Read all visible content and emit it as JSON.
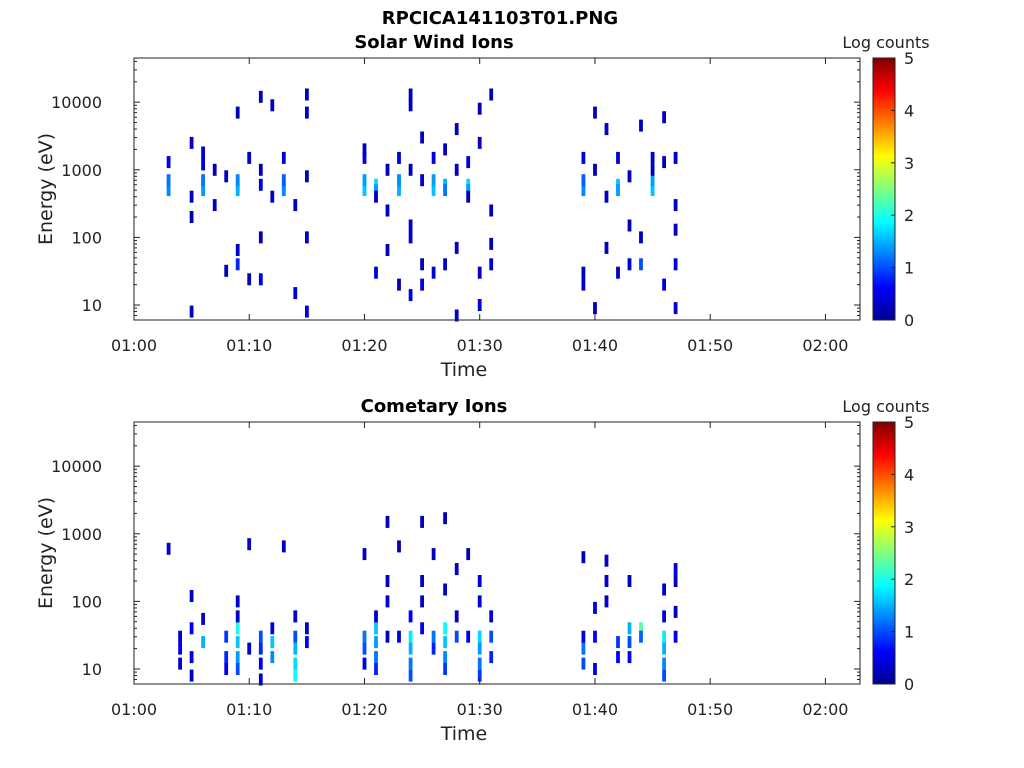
{
  "figure": {
    "title": "RPCICA141103T01.PNG"
  },
  "colorbar": {
    "label": "Log counts",
    "min": 0,
    "max": 5,
    "ticks": [
      "0",
      "1",
      "2",
      "3",
      "4",
      "5"
    ],
    "colormap": "jet"
  },
  "chart_data": [
    {
      "type": "heatmap",
      "title": "Solar Wind Ions",
      "xlabel": "Time",
      "ylabel": "Energy (eV)",
      "y_scale": "log",
      "x_range": [
        "01:00",
        "02:03"
      ],
      "y_range": [
        6,
        45000
      ],
      "x_ticks": [
        "01:00",
        "01:10",
        "01:20",
        "01:30",
        "01:40",
        "01:50",
        "02:00"
      ],
      "y_ticks": [
        "10",
        "100",
        "1000",
        "10000"
      ],
      "cells": [
        [
          "01:03",
          600,
          1.5
        ],
        [
          "01:03",
          500,
          1.3
        ],
        [
          "01:03",
          700,
          1.2
        ],
        [
          "01:03",
          1300,
          0.5
        ],
        [
          "01:05",
          8,
          0.3
        ],
        [
          "01:05",
          2500,
          0.3
        ],
        [
          "01:05",
          400,
          0.3
        ],
        [
          "01:05",
          200,
          0.2
        ],
        [
          "01:06",
          600,
          1.6
        ],
        [
          "01:06",
          500,
          1.4
        ],
        [
          "01:06",
          700,
          1.2
        ],
        [
          "01:06",
          1800,
          0.4
        ],
        [
          "01:06",
          1200,
          0.4
        ],
        [
          "01:07",
          1000,
          0.3
        ],
        [
          "01:07",
          300,
          0.3
        ],
        [
          "01:08",
          32,
          0.3
        ],
        [
          "01:08",
          800,
          0.3
        ],
        [
          "01:09",
          600,
          1.7
        ],
        [
          "01:09",
          500,
          1.5
        ],
        [
          "01:09",
          700,
          1.3
        ],
        [
          "01:09",
          7000,
          0.3
        ],
        [
          "01:09",
          40,
          0.8
        ],
        [
          "01:09",
          65,
          0.4
        ],
        [
          "01:10",
          1500,
          0.4
        ],
        [
          "01:10",
          24,
          0.3
        ],
        [
          "01:11",
          12000,
          0.3
        ],
        [
          "01:11",
          600,
          0.5
        ],
        [
          "01:11",
          100,
          0.3
        ],
        [
          "01:11",
          24,
          0.5
        ],
        [
          "01:11",
          1000,
          0.3
        ],
        [
          "01:12",
          400,
          0.4
        ],
        [
          "01:12",
          9000,
          0.3
        ],
        [
          "01:13",
          600,
          1.6
        ],
        [
          "01:13",
          500,
          1.3
        ],
        [
          "01:13",
          700,
          1.1
        ],
        [
          "01:13",
          1500,
          0.4
        ],
        [
          "01:14",
          15,
          0.4
        ],
        [
          "01:14",
          300,
          0.3
        ],
        [
          "01:15",
          8,
          0.5
        ],
        [
          "01:15",
          13000,
          0.3
        ],
        [
          "01:15",
          100,
          0.3
        ],
        [
          "01:15",
          7000,
          0.3
        ],
        [
          "01:15",
          800,
          0.3
        ],
        [
          "01:20",
          600,
          1.8
        ],
        [
          "01:20",
          500,
          1.6
        ],
        [
          "01:20",
          700,
          1.4
        ],
        [
          "01:20",
          1500,
          0.5
        ],
        [
          "01:20",
          2000,
          0.3
        ],
        [
          "01:21",
          600,
          1.7
        ],
        [
          "01:21",
          500,
          1.4
        ],
        [
          "01:21",
          30,
          0.4
        ],
        [
          "01:21",
          400,
          0.3
        ],
        [
          "01:22",
          250,
          0.3
        ],
        [
          "01:22",
          65,
          0.3
        ],
        [
          "01:22",
          1000,
          0.3
        ],
        [
          "01:23",
          600,
          1.8
        ],
        [
          "01:23",
          500,
          1.5
        ],
        [
          "01:23",
          700,
          1.3
        ],
        [
          "01:23",
          1500,
          0.5
        ],
        [
          "01:23",
          20,
          0.3
        ],
        [
          "01:24",
          14,
          0.5
        ],
        [
          "01:24",
          100,
          0.4
        ],
        [
          "01:24",
          13000,
          0.3
        ],
        [
          "01:24",
          9000,
          0.3
        ],
        [
          "01:24",
          150,
          0.4
        ],
        [
          "01:24",
          1000,
          0.3
        ],
        [
          "01:25",
          20,
          0.5
        ],
        [
          "01:25",
          40,
          0.3
        ],
        [
          "01:25",
          3000,
          0.3
        ],
        [
          "01:25",
          700,
          0.4
        ],
        [
          "01:26",
          600,
          1.9
        ],
        [
          "01:26",
          500,
          1.6
        ],
        [
          "01:26",
          700,
          1.4
        ],
        [
          "01:26",
          1500,
          0.5
        ],
        [
          "01:26",
          30,
          0.4
        ],
        [
          "01:27",
          600,
          1.5
        ],
        [
          "01:27",
          500,
          1.2
        ],
        [
          "01:27",
          40,
          0.4
        ],
        [
          "01:27",
          2000,
          0.3
        ],
        [
          "01:28",
          7,
          0.4
        ],
        [
          "01:28",
          4000,
          0.3
        ],
        [
          "01:28",
          1000,
          0.3
        ],
        [
          "01:28",
          70,
          0.3
        ],
        [
          "01:29",
          600,
          1.7
        ],
        [
          "01:29",
          500,
          1.4
        ],
        [
          "01:29",
          1300,
          0.4
        ],
        [
          "01:29",
          400,
          0.3
        ],
        [
          "01:30",
          10,
          0.5
        ],
        [
          "01:30",
          30,
          0.4
        ],
        [
          "01:30",
          8000,
          0.3
        ],
        [
          "01:30",
          2500,
          0.3
        ],
        [
          "01:31",
          13000,
          0.3
        ],
        [
          "01:31",
          40,
          0.4
        ],
        [
          "01:31",
          80,
          0.3
        ],
        [
          "01:31",
          250,
          0.3
        ],
        [
          "01:39",
          600,
          1.5
        ],
        [
          "01:39",
          500,
          1.3
        ],
        [
          "01:39",
          700,
          1.1
        ],
        [
          "01:39",
          1500,
          0.5
        ],
        [
          "01:39",
          20,
          0.4
        ],
        [
          "01:39",
          30,
          0.3
        ],
        [
          "01:40",
          7000,
          0.3
        ],
        [
          "01:40",
          1000,
          0.3
        ],
        [
          "01:40",
          9,
          0.3
        ],
        [
          "01:41",
          4000,
          0.3
        ],
        [
          "01:41",
          70,
          0.3
        ],
        [
          "01:41",
          400,
          0.3
        ],
        [
          "01:42",
          600,
          1.6
        ],
        [
          "01:42",
          500,
          1.4
        ],
        [
          "01:42",
          1500,
          0.4
        ],
        [
          "01:42",
          30,
          0.3
        ],
        [
          "01:43",
          40,
          0.4
        ],
        [
          "01:43",
          800,
          0.3
        ],
        [
          "01:43",
          150,
          0.3
        ],
        [
          "01:44",
          40,
          1.0
        ],
        [
          "01:44",
          4500,
          0.3
        ],
        [
          "01:44",
          100,
          0.3
        ],
        [
          "01:45",
          600,
          1.9
        ],
        [
          "01:45",
          500,
          1.6
        ],
        [
          "01:45",
          700,
          1.4
        ],
        [
          "01:45",
          1500,
          0.4
        ],
        [
          "01:45",
          1000,
          0.3
        ],
        [
          "01:46",
          20,
          0.4
        ],
        [
          "01:46",
          6000,
          0.3
        ],
        [
          "01:46",
          1300,
          0.3
        ],
        [
          "01:47",
          9,
          0.4
        ],
        [
          "01:47",
          40,
          0.4
        ],
        [
          "01:47",
          300,
          0.3
        ],
        [
          "01:47",
          130,
          0.3
        ],
        [
          "01:47",
          1500,
          0.3
        ]
      ]
    },
    {
      "type": "heatmap",
      "title": "Cometary Ions",
      "xlabel": "Time",
      "ylabel": "Energy (eV)",
      "y_scale": "log",
      "x_range": [
        "01:00",
        "02:03"
      ],
      "y_range": [
        6,
        45000
      ],
      "x_ticks": [
        "01:00",
        "01:10",
        "01:20",
        "01:30",
        "01:40",
        "01:50",
        "02:00"
      ],
      "y_ticks": [
        "10",
        "100",
        "1000",
        "10000"
      ],
      "cells": [
        [
          "01:03",
          600,
          0.4
        ],
        [
          "01:04",
          30,
          0.5
        ],
        [
          "01:04",
          20,
          0.6
        ],
        [
          "01:04",
          12,
          0.4
        ],
        [
          "01:05",
          40,
          0.6
        ],
        [
          "01:05",
          15,
          0.5
        ],
        [
          "01:05",
          8,
          0.3
        ],
        [
          "01:05",
          120,
          0.3
        ],
        [
          "01:06",
          25,
          1.5
        ],
        [
          "01:06",
          55,
          0.4
        ],
        [
          "01:08",
          30,
          0.9
        ],
        [
          "01:08",
          15,
          0.8
        ],
        [
          "01:08",
          10,
          0.5
        ],
        [
          "01:09",
          40,
          2.0
        ],
        [
          "01:09",
          25,
          1.6
        ],
        [
          "01:09",
          15,
          1.4
        ],
        [
          "01:09",
          10,
          1.0
        ],
        [
          "01:09",
          100,
          0.4
        ],
        [
          "01:09",
          60,
          0.4
        ],
        [
          "01:10",
          700,
          0.3
        ],
        [
          "01:10",
          20,
          0.4
        ],
        [
          "01:11",
          30,
          1.0
        ],
        [
          "01:11",
          20,
          0.8
        ],
        [
          "01:11",
          12,
          0.6
        ],
        [
          "01:11",
          7,
          0.4
        ],
        [
          "01:12",
          25,
          1.6
        ],
        [
          "01:12",
          15,
          1.3
        ],
        [
          "01:12",
          40,
          0.5
        ],
        [
          "01:13",
          650,
          0.3
        ],
        [
          "01:14",
          30,
          1.0
        ],
        [
          "01:14",
          20,
          1.5
        ],
        [
          "01:14",
          12,
          1.7
        ],
        [
          "01:14",
          8,
          1.9
        ],
        [
          "01:14",
          60,
          0.4
        ],
        [
          "01:15",
          25,
          0.6
        ],
        [
          "01:15",
          40,
          0.4
        ],
        [
          "01:20",
          30,
          1.2
        ],
        [
          "01:20",
          20,
          1.0
        ],
        [
          "01:20",
          500,
          0.3
        ],
        [
          "01:20",
          12,
          0.5
        ],
        [
          "01:21",
          40,
          1.6
        ],
        [
          "01:21",
          25,
          1.4
        ],
        [
          "01:21",
          15,
          1.2
        ],
        [
          "01:21",
          10,
          0.8
        ],
        [
          "01:21",
          60,
          0.4
        ],
        [
          "01:22",
          1500,
          0.3
        ],
        [
          "01:22",
          100,
          0.4
        ],
        [
          "01:22",
          200,
          0.3
        ],
        [
          "01:22",
          30,
          0.3
        ],
        [
          "01:23",
          650,
          0.3
        ],
        [
          "01:23",
          30,
          0.5
        ],
        [
          "01:24",
          30,
          1.8
        ],
        [
          "01:24",
          20,
          1.5
        ],
        [
          "01:24",
          12,
          1.2
        ],
        [
          "01:24",
          8,
          1.0
        ],
        [
          "01:24",
          60,
          0.6
        ],
        [
          "01:25",
          1500,
          0.3
        ],
        [
          "01:25",
          200,
          0.4
        ],
        [
          "01:25",
          100,
          0.3
        ],
        [
          "01:25",
          40,
          0.6
        ],
        [
          "01:26",
          30,
          1.2
        ],
        [
          "01:26",
          20,
          0.8
        ],
        [
          "01:26",
          500,
          0.3
        ],
        [
          "01:27",
          40,
          1.9
        ],
        [
          "01:27",
          25,
          1.6
        ],
        [
          "01:27",
          15,
          1.3
        ],
        [
          "01:27",
          10,
          0.9
        ],
        [
          "01:27",
          1700,
          0.3
        ],
        [
          "01:27",
          150,
          0.4
        ],
        [
          "01:28",
          30,
          1.0
        ],
        [
          "01:28",
          300,
          0.4
        ],
        [
          "01:28",
          60,
          0.4
        ],
        [
          "01:29",
          500,
          0.3
        ],
        [
          "01:29",
          30,
          0.5
        ],
        [
          "01:30",
          30,
          1.7
        ],
        [
          "01:30",
          20,
          1.4
        ],
        [
          "01:30",
          12,
          1.2
        ],
        [
          "01:30",
          8,
          0.9
        ],
        [
          "01:30",
          200,
          0.4
        ],
        [
          "01:30",
          100,
          0.4
        ],
        [
          "01:31",
          30,
          1.0
        ],
        [
          "01:31",
          15,
          0.8
        ],
        [
          "01:31",
          60,
          0.4
        ],
        [
          "01:39",
          450,
          0.3
        ],
        [
          "01:39",
          20,
          1.2
        ],
        [
          "01:39",
          12,
          1.0
        ],
        [
          "01:39",
          30,
          0.5
        ],
        [
          "01:40",
          80,
          0.4
        ],
        [
          "01:40",
          10,
          0.5
        ],
        [
          "01:40",
          30,
          0.6
        ],
        [
          "01:41",
          200,
          0.4
        ],
        [
          "01:41",
          400,
          0.3
        ],
        [
          "01:41",
          100,
          0.3
        ],
        [
          "01:42",
          25,
          0.9
        ],
        [
          "01:42",
          15,
          0.6
        ],
        [
          "01:43",
          40,
          1.5
        ],
        [
          "01:43",
          25,
          1.0
        ],
        [
          "01:43",
          15,
          0.6
        ],
        [
          "01:43",
          200,
          0.3
        ],
        [
          "01:44",
          40,
          2.3
        ],
        [
          "01:44",
          30,
          1.1
        ],
        [
          "01:46",
          30,
          1.8
        ],
        [
          "01:46",
          20,
          1.5
        ],
        [
          "01:46",
          12,
          1.3
        ],
        [
          "01:46",
          8,
          1.0
        ],
        [
          "01:46",
          60,
          0.5
        ],
        [
          "01:46",
          150,
          0.4
        ],
        [
          "01:47",
          300,
          0.4
        ],
        [
          "01:47",
          200,
          0.3
        ],
        [
          "01:47",
          70,
          0.3
        ],
        [
          "01:47",
          30,
          0.5
        ]
      ]
    }
  ]
}
